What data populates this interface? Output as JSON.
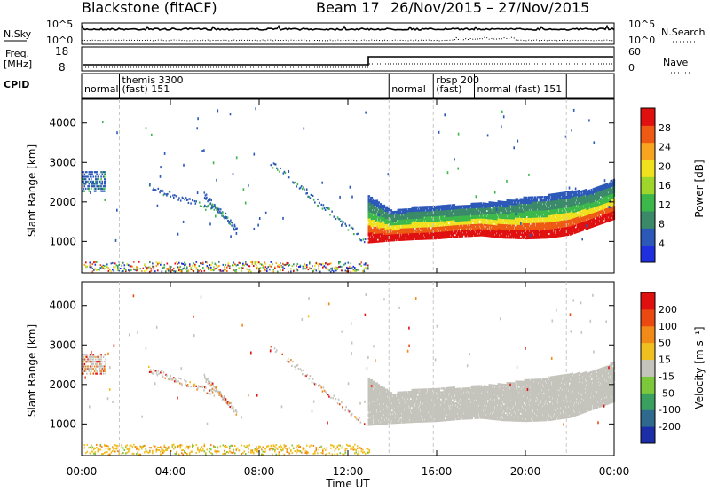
{
  "header": {
    "title": "Blackstone (fitACF)",
    "beam_label": "Beam 17",
    "date_range": "26/Nov/2015 – 27/Nov/2015"
  },
  "top_panels": {
    "nsky_label": "N.Sky",
    "nsearch_label": "N.Search",
    "left_ticks": [
      "10^5",
      "10^0"
    ],
    "right_ticks": [
      "10^5",
      "10^0"
    ],
    "freq_label_line1": "Freq.",
    "freq_label_line2": "[MHz]",
    "freq_ticks": [
      "18",
      "8"
    ],
    "nave_label": "Nave",
    "nave_ticks": [
      "60",
      "0"
    ],
    "cpid_label": "CPID",
    "cpid_segments": [
      {
        "start_h": 0.0,
        "end_h": 1.7,
        "line1": "",
        "line2": "normal"
      },
      {
        "start_h": 1.7,
        "end_h": 13.85,
        "line1": "themis 3300",
        "line2": "(fast) 151"
      },
      {
        "start_h": 13.85,
        "end_h": 15.85,
        "line1": "",
        "line2": "normal"
      },
      {
        "start_h": 15.85,
        "end_h": 17.7,
        "line1": "rbsp 200",
        "line2": "(fast)"
      },
      {
        "start_h": 17.7,
        "end_h": 21.85,
        "line1": "",
        "line2": "normal (fast) 151"
      },
      {
        "start_h": 21.85,
        "end_h": 24.0,
        "line1": "",
        "line2": ""
      }
    ]
  },
  "chart_data": {
    "type": "heatmap",
    "x_axis": {
      "label": "Time UT",
      "range_hours": [
        0,
        24
      ],
      "ticks": [
        "00:00",
        "04:00",
        "08:00",
        "12:00",
        "16:00",
        "20:00",
        "00:00"
      ]
    },
    "panels": [
      {
        "name": "power",
        "ylabel": "Slant Range [km]",
        "yrange_km": [
          200,
          4600
        ],
        "yticks": [
          1000,
          2000,
          3000,
          4000
        ],
        "colorbar": {
          "label": "Power [dB]",
          "range": [
            0,
            32
          ],
          "ticks": [
            4,
            8,
            12,
            16,
            20,
            24,
            28
          ],
          "colors": [
            "#1f2fe0",
            "#2c58b8",
            "#3a8a6a",
            "#3cb84a",
            "#9fd62c",
            "#f0e01e",
            "#f7a41e",
            "#ee5a14",
            "#e01010"
          ]
        }
      },
      {
        "name": "velocity",
        "ylabel": "Slant Range [km]",
        "yrange_km": [
          200,
          4600
        ],
        "yticks": [
          1000,
          2000,
          3000,
          4000
        ],
        "colorbar": {
          "label": "Velocity [m s⁻¹]",
          "ticks": [
            "200",
            "100",
            "50",
            "15",
            "-15",
            "-50",
            "-100",
            "-200"
          ],
          "colors": [
            "#1b2ea8",
            "#2f6a8e",
            "#3aa060",
            "#7cc83a",
            "#c4c4bc",
            "#f0c020",
            "#f28a18",
            "#ea4a12",
            "#e01010"
          ]
        }
      }
    ],
    "main_band": {
      "start_h": 12.9,
      "end_h": 24.0,
      "lower_km": [
        [
          12.9,
          1000
        ],
        [
          14,
          1050
        ],
        [
          15,
          1080
        ],
        [
          16,
          1100
        ],
        [
          17,
          1150
        ],
        [
          18,
          1180
        ],
        [
          19,
          1120
        ],
        [
          20,
          1100
        ],
        [
          21,
          1120
        ],
        [
          22,
          1200
        ],
        [
          23,
          1400
        ],
        [
          24,
          1600
        ]
      ],
      "upper_km": [
        [
          12.9,
          2200
        ],
        [
          14,
          1800
        ],
        [
          15,
          1900
        ],
        [
          16,
          1950
        ],
        [
          17,
          1950
        ],
        [
          18,
          2000
        ],
        [
          19,
          2050
        ],
        [
          20,
          2150
        ],
        [
          21,
          2200
        ],
        [
          22,
          2300
        ],
        [
          23,
          2350
        ],
        [
          24,
          2600
        ]
      ]
    }
  }
}
